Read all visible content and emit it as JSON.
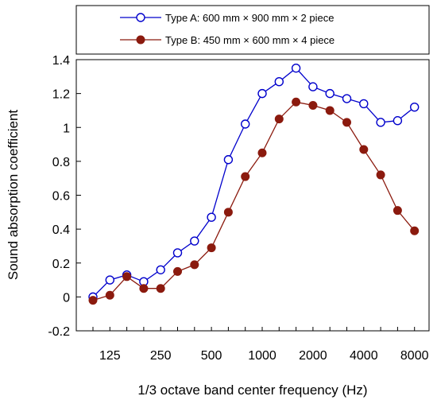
{
  "chart_data": {
    "type": "line",
    "xlabel": "1/3 octave band center frequency (Hz)",
    "ylabel": "Sound absorption coefficient",
    "ylim": [
      -0.2,
      1.4
    ],
    "y_ticks": [
      "-0.2",
      "0",
      "0.2",
      "0.4",
      "0.6",
      "0.8",
      "1",
      "1.2",
      "1.4"
    ],
    "x": [
      100,
      125,
      160,
      200,
      250,
      315,
      400,
      500,
      630,
      800,
      1000,
      1250,
      1600,
      2000,
      2500,
      3150,
      4000,
      5000,
      6300,
      8000
    ],
    "x_tick_labels": [
      "125",
      "250",
      "500",
      "1000",
      "2000",
      "4000",
      "8000"
    ],
    "grid": false,
    "legend_position": "top",
    "series": [
      {
        "name": "Type A: 600 mm × 900 mm × 2 piece",
        "color": "#0000cc",
        "marker": "open-circle",
        "values": [
          0.0,
          0.1,
          0.13,
          0.09,
          0.16,
          0.26,
          0.33,
          0.47,
          0.81,
          1.02,
          1.2,
          1.27,
          1.35,
          1.24,
          1.2,
          1.17,
          1.14,
          1.03,
          1.04,
          1.12
        ]
      },
      {
        "name": "Type B: 450 mm × 600 mm × 4 piece",
        "color": "#8b1a0e",
        "marker": "filled-circle",
        "values": [
          -0.02,
          0.01,
          0.12,
          0.05,
          0.05,
          0.15,
          0.19,
          0.29,
          0.5,
          0.71,
          0.85,
          1.05,
          1.15,
          1.13,
          1.1,
          1.03,
          0.87,
          0.72,
          0.51,
          0.39
        ]
      }
    ]
  }
}
